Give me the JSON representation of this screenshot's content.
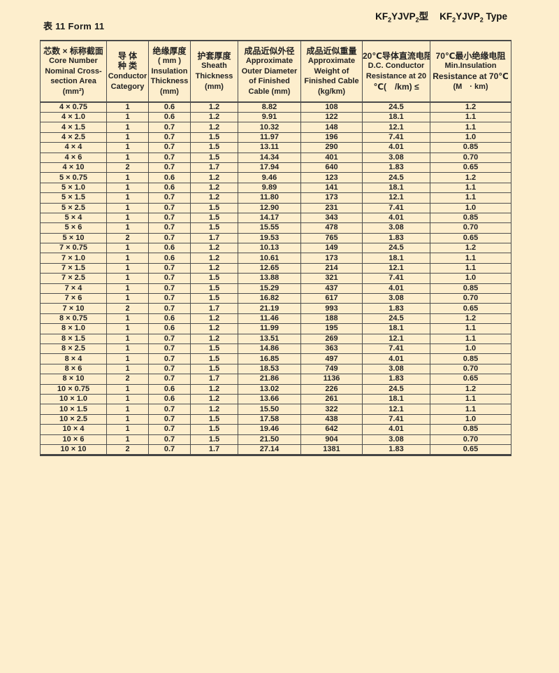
{
  "page": {
    "caption": "表 11 Form 11",
    "background_color": "#fdeecd",
    "border_color": "#4e4e4e",
    "text_color": "#1f1f1f"
  },
  "title_right": {
    "kf_a": "KF",
    "sub_a": "2",
    "mid_a": "YJVP",
    "sub_b": "2",
    "end_a": "型",
    "kf_b": "KF",
    "sub_c": "2",
    "mid_b": "YJVP",
    "sub_d": "2",
    "end_b": " Type"
  },
  "table": {
    "columns": [
      {
        "id": "core-number",
        "lines": [
          "芯数 × 标称截面",
          "Core Number",
          "Nominal Cross-",
          "section Area",
          "(mm²)"
        ]
      },
      {
        "id": "conductor-category",
        "lines": [
          "导 体",
          "种 类",
          "Conductor",
          "Category"
        ]
      },
      {
        "id": "insulation-thickness",
        "lines": [
          "绝缘厚度",
          "( mm )",
          "Insulation",
          "Thickness",
          "(mm)"
        ]
      },
      {
        "id": "sheath-thickness",
        "lines": [
          "护套厚度",
          "Sheath",
          "Thickness",
          "(mm)"
        ]
      },
      {
        "id": "outer-diameter",
        "lines": [
          "成品近似外径",
          "Approximate",
          "Outer Diameter",
          "of Finished",
          "Cable (mm)"
        ]
      },
      {
        "id": "weight",
        "lines": [
          "成品近似重量",
          "Approximate",
          "Weight of",
          "Finished Cable",
          "(kg/km)"
        ]
      },
      {
        "id": "dc-resistance",
        "lines": [
          "20℃导体直流电阻",
          "D.C. Conductor",
          "Resistance at 20",
          "℃(　/km) ≤"
        ]
      },
      {
        "id": "min-insulation-resistance",
        "lines": [
          "70℃最小绝缘电阻",
          "Min.Insulation",
          "Resistance at 70℃",
          "(M　· km)"
        ]
      }
    ],
    "rows": [
      [
        "4 × 0.75",
        "1",
        "0.6",
        "1.2",
        "8.82",
        "108",
        "24.5",
        "1.2"
      ],
      [
        "4 × 1.0",
        "1",
        "0.6",
        "1.2",
        "9.91",
        "122",
        "18.1",
        "1.1"
      ],
      [
        "4 × 1.5",
        "1",
        "0.7",
        "1.2",
        "10.32",
        "148",
        "12.1",
        "1.1"
      ],
      [
        "4 × 2.5",
        "1",
        "0.7",
        "1.5",
        "11.97",
        "196",
        "7.41",
        "1.0"
      ],
      [
        "4 × 4",
        "1",
        "0.7",
        "1.5",
        "13.11",
        "290",
        "4.01",
        "0.85"
      ],
      [
        "4 × 6",
        "1",
        "0.7",
        "1.5",
        "14.34",
        "401",
        "3.08",
        "0.70"
      ],
      [
        "4 × 10",
        "2",
        "0.7",
        "1.7",
        "17.94",
        "640",
        "1.83",
        "0.65"
      ],
      [
        "5 × 0.75",
        "1",
        "0.6",
        "1.2",
        "9.46",
        "123",
        "24.5",
        "1.2"
      ],
      [
        "5 × 1.0",
        "1",
        "0.6",
        "1.2",
        "9.89",
        "141",
        "18.1",
        "1.1"
      ],
      [
        "5 × 1.5",
        "1",
        "0.7",
        "1.2",
        "11.80",
        "173",
        "12.1",
        "1.1"
      ],
      [
        "5 × 2.5",
        "1",
        "0.7",
        "1.5",
        "12.90",
        "231",
        "7.41",
        "1.0"
      ],
      [
        "5 × 4",
        "1",
        "0.7",
        "1.5",
        "14.17",
        "343",
        "4.01",
        "0.85"
      ],
      [
        "5 × 6",
        "1",
        "0.7",
        "1.5",
        "15.55",
        "478",
        "3.08",
        "0.70"
      ],
      [
        "5 × 10",
        "2",
        "0.7",
        "1.7",
        "19.53",
        "765",
        "1.83",
        "0.65"
      ],
      [
        "7 × 0.75",
        "1",
        "0.6",
        "1.2",
        "10.13",
        "149",
        "24.5",
        "1.2"
      ],
      [
        "7 × 1.0",
        "1",
        "0.6",
        "1.2",
        "10.61",
        "173",
        "18.1",
        "1.1"
      ],
      [
        "7 × 1.5",
        "1",
        "0.7",
        "1.2",
        "12.65",
        "214",
        "12.1",
        "1.1"
      ],
      [
        "7 × 2.5",
        "1",
        "0.7",
        "1.5",
        "13.88",
        "321",
        "7.41",
        "1.0"
      ],
      [
        "7 × 4",
        "1",
        "0.7",
        "1.5",
        "15.29",
        "437",
        "4.01",
        "0.85"
      ],
      [
        "7 × 6",
        "1",
        "0.7",
        "1.5",
        "16.82",
        "617",
        "3.08",
        "0.70"
      ],
      [
        "7 × 10",
        "2",
        "0.7",
        "1.7",
        "21.19",
        "993",
        "1.83",
        "0.65"
      ],
      [
        "8 × 0.75",
        "1",
        "0.6",
        "1.2",
        "11.46",
        "188",
        "24.5",
        "1.2"
      ],
      [
        "8 × 1.0",
        "1",
        "0.6",
        "1.2",
        "11.99",
        "195",
        "18.1",
        "1.1"
      ],
      [
        "8 × 1.5",
        "1",
        "0.7",
        "1.2",
        "13.51",
        "269",
        "12.1",
        "1.1"
      ],
      [
        "8 × 2.5",
        "1",
        "0.7",
        "1.5",
        "14.86",
        "363",
        "7.41",
        "1.0"
      ],
      [
        "8 × 4",
        "1",
        "0.7",
        "1.5",
        "16.85",
        "497",
        "4.01",
        "0.85"
      ],
      [
        "8 × 6",
        "1",
        "0.7",
        "1.5",
        "18.53",
        "749",
        "3.08",
        "0.70"
      ],
      [
        "8 × 10",
        "2",
        "0.7",
        "1.7",
        "21.86",
        "1136",
        "1.83",
        "0.65"
      ],
      [
        "10 × 0.75",
        "1",
        "0.6",
        "1.2",
        "13.02",
        "226",
        "24.5",
        "1.2"
      ],
      [
        "10 × 1.0",
        "1",
        "0.6",
        "1.2",
        "13.66",
        "261",
        "18.1",
        "1.1"
      ],
      [
        "10 × 1.5",
        "1",
        "0.7",
        "1.2",
        "15.50",
        "322",
        "12.1",
        "1.1"
      ],
      [
        "10 × 2.5",
        "1",
        "0.7",
        "1.5",
        "17.58",
        "438",
        "7.41",
        "1.0"
      ],
      [
        "10 × 4",
        "1",
        "0.7",
        "1.5",
        "19.46",
        "642",
        "4.01",
        "0.85"
      ],
      [
        "10 × 6",
        "1",
        "0.7",
        "1.5",
        "21.50",
        "904",
        "3.08",
        "0.70"
      ],
      [
        "10 × 10",
        "2",
        "0.7",
        "1.7",
        "27.14",
        "1381",
        "1.83",
        "0.65"
      ]
    ]
  }
}
